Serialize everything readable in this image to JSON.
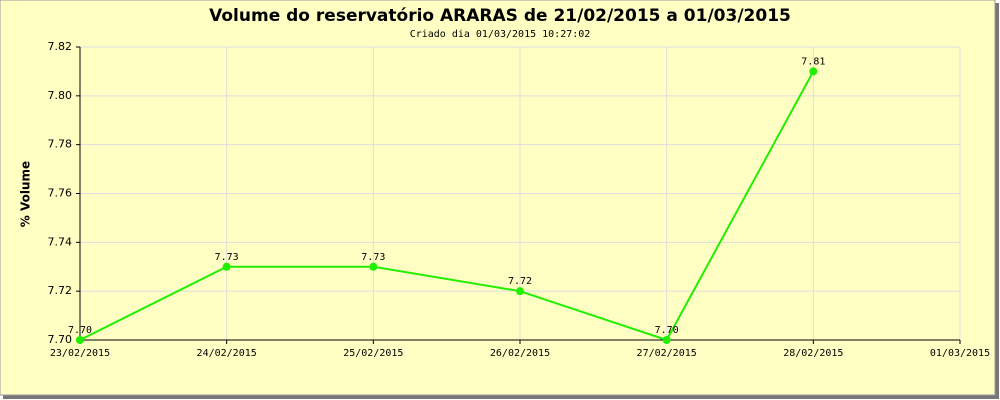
{
  "chart_data": {
    "type": "line",
    "title": "Volume do reservatório ARARAS de 21/02/2015 a 01/03/2015",
    "subtitle": "Criado dia 01/03/2015  10:27:02",
    "y_label": "% Volume",
    "x": [
      "23/02/2015",
      "24/02/2015",
      "25/02/2015",
      "26/02/2015",
      "27/02/2015",
      "28/02/2015",
      "01/03/2015"
    ],
    "series": [
      {
        "name": "Volume",
        "color": "#22ee00",
        "values": [
          7.7,
          7.73,
          7.73,
          7.72,
          7.7,
          7.81,
          null
        ],
        "value_labels": [
          "7.70",
          "7.73",
          "7.73",
          "7.72",
          "7.70",
          "7.81",
          null
        ]
      }
    ],
    "ylim": [
      7.7,
      7.82
    ],
    "yticks": [
      {
        "value": 7.7,
        "label": "7.70"
      },
      7.72,
      7.74,
      7.76,
      7.78,
      {
        "value": 7.8,
        "label": "7.80"
      },
      7.82
    ],
    "grid": true
  }
}
